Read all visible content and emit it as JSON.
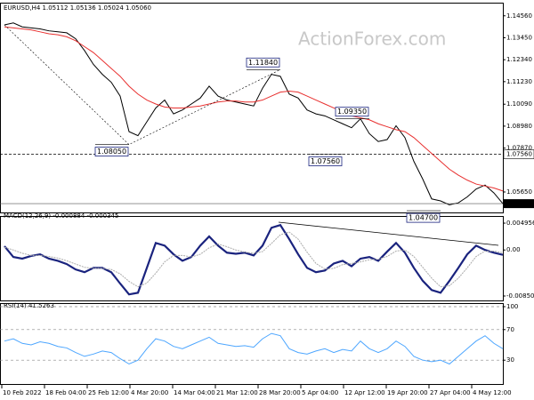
{
  "chart_data": [
    {
      "type": "line",
      "title": "EURUSD,H4 1.05112 1.05136 1.05024 1.05060",
      "watermark": "ActionForex.com",
      "xlim": [
        -0.5,
        56
      ],
      "ylim": [
        1.0466,
        1.1491
      ],
      "yticks": [
        {
          "value": 1.1456,
          "label": "1.14560"
        },
        {
          "value": 1.1345,
          "label": "1.13450"
        },
        {
          "value": 1.1234,
          "label": "1.12340"
        },
        {
          "value": 1.1123,
          "label": "1.11230"
        },
        {
          "value": 1.1009,
          "label": "1.10090"
        },
        {
          "value": 1.0898,
          "label": "1.08980"
        },
        {
          "value": 1.0787,
          "label": "1.07870"
        },
        {
          "value": 1.0565,
          "label": "1.05650"
        }
      ],
      "series": [
        {
          "color": "#000000",
          "values": [
            1.141,
            1.142,
            1.14,
            1.1395,
            1.139,
            1.138,
            1.1375,
            1.137,
            1.134,
            1.128,
            1.121,
            1.116,
            1.112,
            1.105,
            1.087,
            1.085,
            1.092,
            1.099,
            1.103,
            1.096,
            1.098,
            1.101,
            1.104,
            1.11,
            1.105,
            1.103,
            1.102,
            1.101,
            1.1,
            1.109,
            1.116,
            1.115,
            1.106,
            1.104,
            1.098,
            1.096,
            1.095,
            1.093,
            1.091,
            1.089,
            1.0935,
            1.086,
            1.082,
            1.083,
            1.09,
            1.084,
            1.072,
            1.063,
            1.053,
            1.052,
            1.05,
            1.051,
            1.054,
            1.058,
            1.06,
            1.056,
            1.0506
          ]
        },
        {
          "color": "#e8302f",
          "values": [
            1.14,
            1.1395,
            1.139,
            1.1385,
            1.1375,
            1.1365,
            1.136,
            1.135,
            1.133,
            1.13,
            1.127,
            1.123,
            1.119,
            1.115,
            1.11,
            1.106,
            1.103,
            1.101,
            1.0995,
            1.099,
            1.099,
            1.0995,
            1.1,
            1.101,
            1.102,
            1.1025,
            1.1025,
            1.102,
            1.102,
            1.103,
            1.105,
            1.107,
            1.1075,
            1.107,
            1.105,
            1.103,
            1.101,
            1.099,
            1.097,
            1.095,
            1.094,
            1.093,
            1.091,
            1.0895,
            1.088,
            1.087,
            1.084,
            1.08,
            1.076,
            1.072,
            1.068,
            1.065,
            1.0625,
            1.0605,
            1.0595,
            1.0585,
            1.057
          ]
        }
      ],
      "annotations": [
        {
          "x": 14,
          "value": 1.0805,
          "label": "1.08050"
        },
        {
          "x": 31,
          "value": 1.1184,
          "label": "1.11840"
        },
        {
          "x": 41,
          "value": 1.0935,
          "label": "1.09350"
        },
        {
          "x": 38,
          "value": 1.0756,
          "label": "1.07560"
        },
        {
          "x": 49,
          "value": 1.047,
          "label": "1.04700"
        }
      ],
      "hline": {
        "value": 1.0756,
        "label": "1.07560"
      },
      "last_price": {
        "value": 1.0506,
        "label": "1.05060"
      }
    },
    {
      "type": "line",
      "title": "MACD(12,26,9) -0.000884 -0.000345",
      "xlim": [
        -0.5,
        56
      ],
      "ylim": [
        -0.00932,
        0.00611
      ],
      "yticks": [
        0.004956,
        {
          "value": 0,
          "label": "0.00"
        },
        -0.008501
      ],
      "series": [
        {
          "color": "#1a237e",
          "values": [
            0.0007,
            -0.0013,
            -0.0016,
            -0.0011,
            -0.0008,
            -0.0016,
            -0.002,
            -0.0026,
            -0.0036,
            -0.0041,
            -0.0033,
            -0.0033,
            -0.0041,
            -0.0062,
            -0.0082,
            -0.0079,
            -0.0033,
            0.0013,
            0.0008,
            -0.0008,
            -0.002,
            -0.0013,
            0.0008,
            0.0025,
            0.0008,
            -0.0005,
            -0.0007,
            -0.0005,
            -0.001,
            0.0008,
            0.0041,
            0.0046,
            0.002,
            -0.0008,
            -0.0033,
            -0.0041,
            -0.0038,
            -0.0025,
            -0.002,
            -0.003,
            -0.0016,
            -0.0013,
            -0.002,
            -0.0003,
            0.0013,
            -0.0005,
            -0.0033,
            -0.0057,
            -0.0074,
            -0.0079,
            -0.0057,
            -0.0033,
            -0.0008,
            0.0008,
            0,
            -0.0005,
            -0.0009
          ]
        },
        {
          "color": "#aaaaaa",
          "values": [
            0.0005,
            0,
            -0.0006,
            -0.001,
            -0.001,
            -0.0012,
            -0.0015,
            -0.002,
            -0.0026,
            -0.0032,
            -0.0034,
            -0.0034,
            -0.0036,
            -0.0044,
            -0.0058,
            -0.0068,
            -0.0061,
            -0.0043,
            -0.0022,
            -0.001,
            -0.001,
            -0.0013,
            -0.0008,
            0.0004,
            0.0011,
            0.0006,
            0,
            -0.0004,
            -0.0006,
            -0.0003,
            0.0012,
            0.0028,
            0.0033,
            0.002,
            -0.0004,
            -0.0025,
            -0.0035,
            -0.0034,
            -0.0027,
            -0.0025,
            -0.0022,
            -0.0018,
            -0.0017,
            -0.0012,
            -0.0002,
            0,
            -0.0012,
            -0.0032,
            -0.0052,
            -0.0068,
            -0.0066,
            -0.0052,
            -0.0033,
            -0.0012,
            -0.0002,
            -0.0002,
            -0.0005
          ]
        }
      ]
    },
    {
      "type": "line",
      "title": "RSI(14) 41.5263",
      "grid": true,
      "xlim": [
        -0.5,
        56
      ],
      "ylim": [
        0,
        100
      ],
      "yticks": [
        100,
        70,
        30
      ],
      "xticks": [
        {
          "value": -0.3,
          "label": "10 Feb 2022"
        },
        {
          "value": 4.5,
          "label": "18 Feb 04:00"
        },
        {
          "value": 9.3,
          "label": "25 Feb 12:00"
        },
        {
          "value": 14.1,
          "label": "4 Mar 20:00"
        },
        {
          "value": 18.9,
          "label": "14 Mar 04:00"
        },
        {
          "value": 23.7,
          "label": "21 Mar 12:00"
        },
        {
          "value": 28.5,
          "label": "28 Mar 20:00"
        },
        {
          "value": 33.3,
          "label": "5 Apr 04:00"
        },
        {
          "value": 38.1,
          "label": "12 Apr 12:00"
        },
        {
          "value": 42.9,
          "label": "19 Apr 20:00"
        },
        {
          "value": 47.7,
          "label": "27 Apr 04:00"
        },
        {
          "value": 52.5,
          "label": "4 May 12:00"
        }
      ],
      "series": [
        {
          "color": "#4da6ff",
          "values": [
            55,
            58,
            52,
            50,
            54,
            52,
            48,
            46,
            40,
            35,
            38,
            42,
            40,
            32,
            25,
            30,
            45,
            58,
            55,
            48,
            45,
            50,
            55,
            60,
            52,
            50,
            48,
            49,
            47,
            58,
            65,
            62,
            45,
            40,
            38,
            42,
            45,
            40,
            44,
            42,
            55,
            45,
            40,
            45,
            55,
            48,
            35,
            30,
            28,
            30,
            25,
            35,
            45,
            55,
            62,
            52,
            45
          ]
        }
      ]
    }
  ]
}
